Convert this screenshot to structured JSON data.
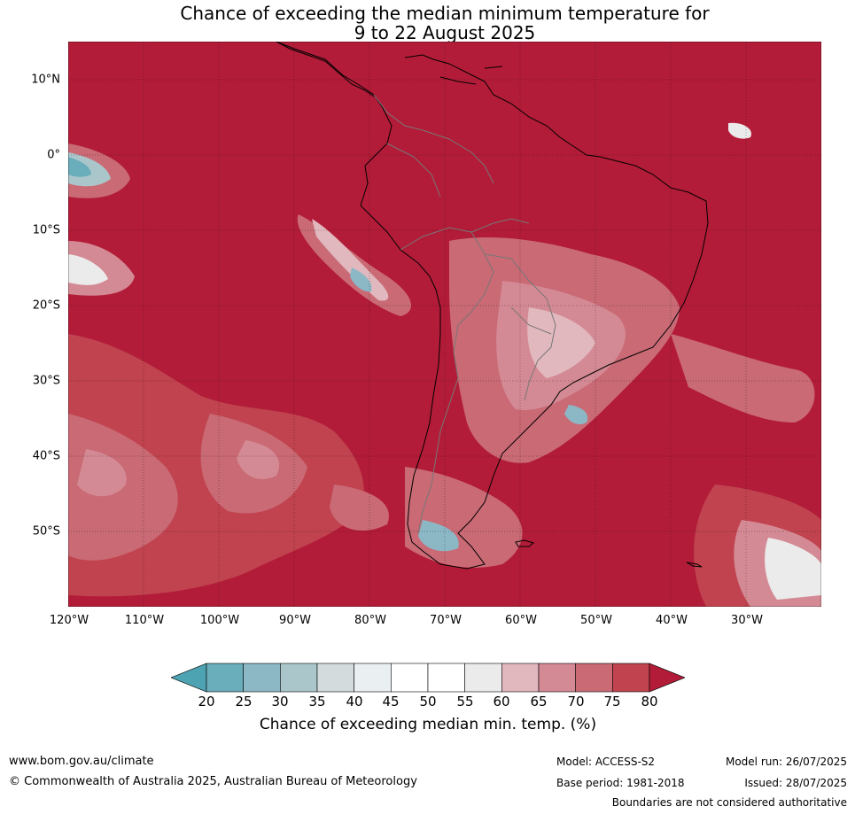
{
  "title_line1": "Chance of exceeding the median minimum temperature for",
  "title_line2": "9 to 22 August 2025",
  "lat_labels": [
    "10°N",
    "0°",
    "10°S",
    "20°S",
    "30°S",
    "40°S",
    "50°S"
  ],
  "lon_labels": [
    "120°W",
    "110°W",
    "100°W",
    "90°W",
    "80°W",
    "70°W",
    "60°W",
    "50°W",
    "40°W",
    "30°W"
  ],
  "colorbar": {
    "ticks": [
      "20",
      "25",
      "30",
      "35",
      "40",
      "45",
      "50",
      "55",
      "60",
      "65",
      "70",
      "75",
      "80"
    ],
    "colors": [
      "#4da3b2",
      "#6aadbb",
      "#8cb8c6",
      "#aac6ca",
      "#d3dbdc",
      "#eaf0f2",
      "#ffffff",
      "#ffffff",
      "#ebebeb",
      "#e0b8be",
      "#d48a94",
      "#c96a75",
      "#c0434f",
      "#b21c38"
    ],
    "label": "Chance of exceeding median min. temp. (%)"
  },
  "footer": {
    "url": "www.bom.gov.au/climate",
    "copyright": "© Commonwealth of Australia 2025, Australian Bureau of Meteorology",
    "model": "Model: ACCESS-S2",
    "base_period": "Base period: 1981-2018",
    "model_run": "Model run: 26/07/2025",
    "issued": "Issued: 28/07/2025",
    "disclaimer": "Boundaries are not considered authoritative"
  }
}
